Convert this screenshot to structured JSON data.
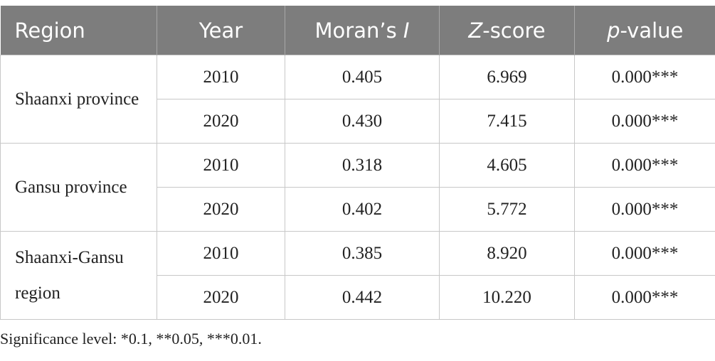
{
  "table": {
    "header": [
      [
        {
          "text": "Region"
        }
      ],
      [
        {
          "text": "Year"
        }
      ],
      [
        {
          "text": "Moran’s "
        },
        {
          "text": "I",
          "italic": true
        }
      ],
      [
        {
          "text": "Z",
          "italic": true
        },
        {
          "text": "-score"
        }
      ],
      [
        {
          "text": "p",
          "italic": true
        },
        {
          "text": "-value"
        }
      ]
    ],
    "groups": [
      {
        "region": "Shaanxi province",
        "rows": [
          [
            "2010",
            "0.405",
            "6.969",
            "0.000***"
          ],
          [
            "2020",
            "0.430",
            "7.415",
            "0.000***"
          ]
        ]
      },
      {
        "region": "Gansu province",
        "rows": [
          [
            "2010",
            "0.318",
            "4.605",
            "0.000***"
          ],
          [
            "2020",
            "0.402",
            "5.772",
            "0.000***"
          ]
        ]
      },
      {
        "region": "Shaanxi-Gansu region",
        "rows": [
          [
            "2010",
            "0.385",
            "8.920",
            "0.000***"
          ],
          [
            "2020",
            "0.442",
            "10.220",
            "0.000***"
          ]
        ]
      }
    ]
  },
  "footnote": "Significance level: *0.1, **0.05, ***0.01."
}
